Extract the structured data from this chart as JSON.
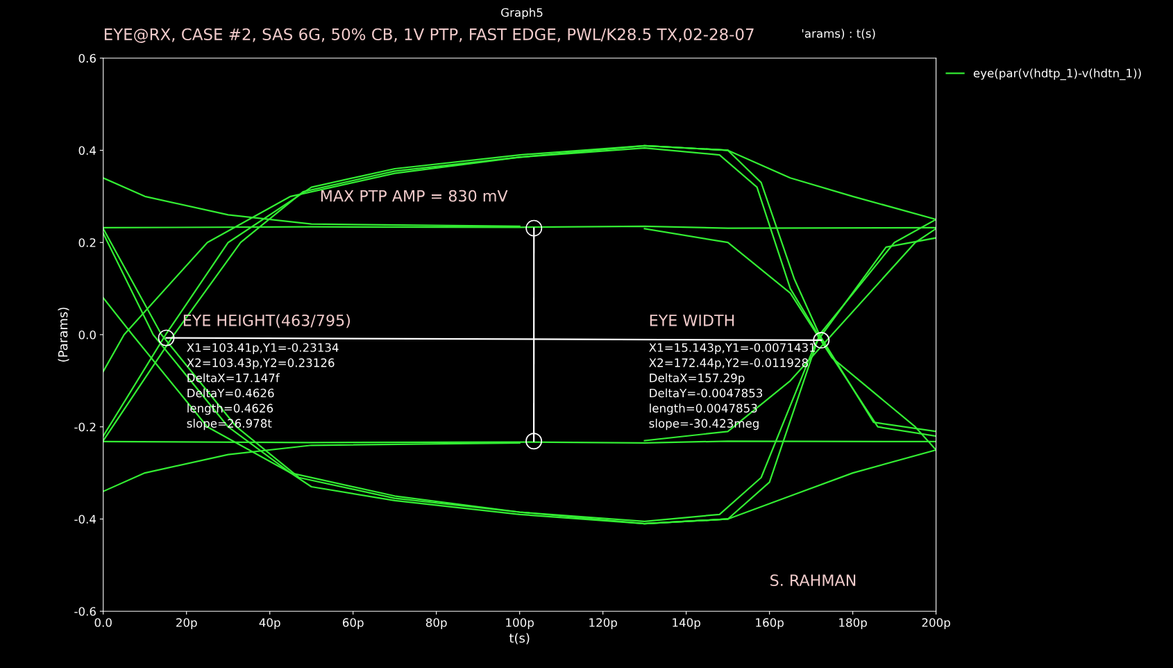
{
  "chart_data": {
    "type": "line",
    "title": "Graph5",
    "subtitle": "EYE@RX, CASE #2, SAS 6G, 50% CB, 1V PTP, FAST EDGE, PWL/K28.5 TX,02-28-07",
    "xlabel": "t(s)",
    "ylabel": "(Params)",
    "xlim": [
      0,
      200
    ],
    "ylim": [
      -0.6,
      0.6
    ],
    "xticks": [
      {
        "value": 0,
        "label": "0.0"
      },
      {
        "value": 20,
        "label": "20p"
      },
      {
        "value": 40,
        "label": "40p"
      },
      {
        "value": 60,
        "label": "60p"
      },
      {
        "value": 80,
        "label": "80p"
      },
      {
        "value": 100,
        "label": "100p"
      },
      {
        "value": 120,
        "label": "120p"
      },
      {
        "value": 140,
        "label": "140p"
      },
      {
        "value": 160,
        "label": "160p"
      },
      {
        "value": 180,
        "label": "180p"
      },
      {
        "value": 200,
        "label": "200p"
      }
    ],
    "yticks": [
      -0.6,
      -0.4,
      -0.2,
      {
        "value": 0,
        "label": "0.0"
      },
      0.2,
      0.4,
      0.6
    ],
    "grid": false,
    "legend": "top right",
    "marker": "none",
    "line_style": "solid",
    "series": [
      {
        "name": "eye(par(v(hdtp_1)-v(hdtn_1))",
        "color": "#33ee33",
        "x": [
          0,
          50,
          100,
          130,
          150,
          200
        ],
        "values": [
          0.232,
          0.234,
          0.233,
          0.235,
          0.231,
          0.232
        ]
      },
      {
        "color": "#33ee33",
        "x": [
          0,
          50,
          100,
          130,
          150,
          200
        ],
        "values": [
          -0.232,
          -0.234,
          -0.233,
          -0.235,
          -0.231,
          -0.232
        ]
      },
      {
        "color": "#33ee33",
        "x": [
          0,
          15,
          30,
          50,
          70,
          100,
          130,
          150,
          158,
          166,
          172,
          185,
          200
        ],
        "values": [
          -0.22,
          0.0,
          0.2,
          0.32,
          0.36,
          0.39,
          0.41,
          0.4,
          0.33,
          0.12,
          0.0,
          -0.19,
          -0.21
        ]
      },
      {
        "color": "#33ee33",
        "x": [
          0,
          17,
          33,
          48,
          70,
          100,
          130,
          148,
          157,
          165,
          173,
          186,
          200
        ],
        "values": [
          -0.23,
          0.0,
          0.2,
          0.31,
          0.355,
          0.385,
          0.405,
          0.39,
          0.32,
          0.1,
          -0.02,
          -0.2,
          -0.22
        ]
      },
      {
        "color": "#33ee33",
        "x": [
          0,
          5,
          25,
          45,
          70,
          100,
          130,
          150
        ],
        "values": [
          -0.08,
          0.0,
          0.2,
          0.3,
          0.35,
          0.385,
          0.41,
          0.4
        ]
      },
      {
        "color": "#33ee33",
        "x": [
          130,
          150,
          165,
          180,
          200
        ],
        "values": [
          0.41,
          0.4,
          0.34,
          0.3,
          0.25
        ]
      },
      {
        "color": "#33ee33",
        "x": [
          0,
          10,
          30,
          50,
          100
        ],
        "values": [
          0.34,
          0.3,
          0.26,
          0.24,
          0.235
        ]
      },
      {
        "color": "#33ee33",
        "x": [
          0,
          12,
          30,
          45,
          50,
          70,
          100,
          130,
          150,
          160,
          172,
          190,
          200
        ],
        "values": [
          0.22,
          0.0,
          -0.2,
          -0.3,
          -0.33,
          -0.36,
          -0.39,
          -0.41,
          -0.4,
          -0.32,
          0.0,
          0.2,
          0.25
        ]
      },
      {
        "color": "#33ee33",
        "x": [
          0,
          14,
          32,
          47,
          70,
          100,
          130,
          148,
          158,
          171,
          188,
          200
        ],
        "values": [
          0.23,
          0.0,
          -0.2,
          -0.31,
          -0.355,
          -0.385,
          -0.405,
          -0.39,
          -0.31,
          -0.02,
          0.19,
          0.21
        ]
      },
      {
        "color": "#33ee33",
        "x": [
          0,
          7,
          25,
          45,
          70,
          100,
          130,
          150
        ],
        "values": [
          0.08,
          0.0,
          -0.2,
          -0.3,
          -0.35,
          -0.385,
          -0.41,
          -0.4
        ]
      },
      {
        "color": "#33ee33",
        "x": [
          130,
          150,
          165,
          180,
          200
        ],
        "values": [
          -0.41,
          -0.4,
          -0.35,
          -0.3,
          -0.25
        ]
      },
      {
        "color": "#33ee33",
        "x": [
          0,
          10,
          30,
          50,
          100
        ],
        "values": [
          -0.34,
          -0.3,
          -0.26,
          -0.24,
          -0.235
        ]
      },
      {
        "color": "#33ee33",
        "x": [
          130,
          150,
          165,
          175,
          195,
          200
        ],
        "values": [
          0.23,
          0.2,
          0.09,
          -0.05,
          -0.2,
          -0.25
        ]
      },
      {
        "color": "#33ee33",
        "x": [
          130,
          150,
          165,
          175,
          195,
          200
        ],
        "values": [
          -0.23,
          -0.21,
          -0.1,
          0.0,
          0.2,
          0.23
        ]
      },
      {
        "color": "#ffffff",
        "x": [
          103.41,
          103.43
        ],
        "values": [
          -0.231,
          0.231
        ],
        "marker": "circle"
      },
      {
        "color": "#ffffff",
        "x": [
          15.143,
          172.44
        ],
        "values": [
          -0.007,
          -0.012
        ],
        "marker": "circle"
      }
    ],
    "annotations": [
      "MAX PTP AMP = 830 mV",
      "EYE HEIGHT(463/795)",
      "X1=103.41p,Y1=-0.23134\nX2=103.43p,Y2=0.23126\nDeltaX=17.147f\nDeltaY=0.4626\nlength=0.4626\nslope=26.978t",
      "EYE WIDTH",
      "X1=15.143p,Y1=-0.0071431\nX2=172.44p,Y2=-0.011928\nDeltaX=157.29p\nDeltaY=-0.0047853\nlength=0.0047853\nslope=-30.423meg",
      "S. RAHMAN",
      "'arams) : t(s)"
    ]
  }
}
